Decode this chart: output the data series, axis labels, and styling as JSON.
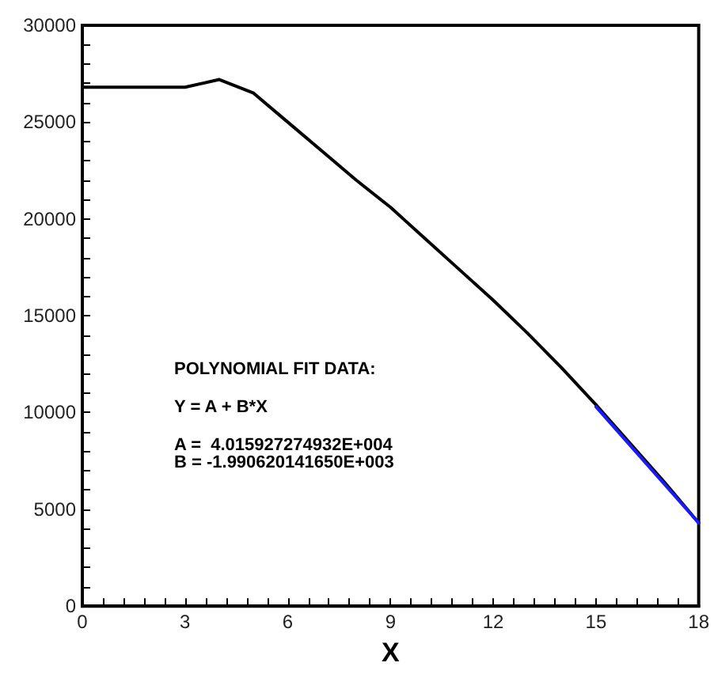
{
  "chart_data": {
    "type": "line",
    "xlabel": "X",
    "x": [
      0,
      1,
      2,
      3,
      4,
      5,
      6,
      7,
      8,
      9,
      10,
      11,
      12,
      13,
      14,
      15,
      16,
      17,
      18
    ],
    "series": [
      {
        "color": "#000000",
        "values": [
          26800,
          26800,
          26800,
          26800,
          27200,
          26500,
          25000,
          23500,
          22000,
          20600,
          19000,
          17400,
          15800,
          14100,
          12300,
          10400,
          8400,
          6400,
          4300
        ]
      },
      {
        "color": "#1a1aff",
        "x": [
          15,
          18
        ],
        "values": [
          10300,
          4300
        ]
      }
    ],
    "xlim": [
      0,
      18
    ],
    "ylim": [
      0,
      30000
    ],
    "xticks": [
      0,
      {
        "value": 0.6,
        "label": null
      },
      {
        "value": 1.2,
        "label": null
      },
      {
        "value": 1.8,
        "label": null
      },
      {
        "value": 2.4,
        "label": null
      },
      3,
      {
        "value": 3.6,
        "label": null
      },
      {
        "value": 4.2,
        "label": null
      },
      {
        "value": 4.8,
        "label": null
      },
      {
        "value": 5.4,
        "label": null
      },
      6,
      {
        "value": 6.6,
        "label": null
      },
      {
        "value": 7.2,
        "label": null
      },
      {
        "value": 7.8,
        "label": null
      },
      {
        "value": 8.4,
        "label": null
      },
      9,
      {
        "value": 9.6,
        "label": null
      },
      {
        "value": 10.2,
        "label": null
      },
      {
        "value": 10.8,
        "label": null
      },
      {
        "value": 11.4,
        "label": null
      },
      12,
      {
        "value": 12.6,
        "label": null
      },
      {
        "value": 13.2,
        "label": null
      },
      {
        "value": 13.8,
        "label": null
      },
      {
        "value": 14.4,
        "label": null
      },
      15,
      {
        "value": 15.6,
        "label": null
      },
      {
        "value": 16.2,
        "label": null
      },
      {
        "value": 16.8,
        "label": null
      },
      {
        "value": 17.4,
        "label": null
      },
      18
    ],
    "yticks": [
      0,
      {
        "value": 1000,
        "label": null
      },
      {
        "value": 2000,
        "label": null
      },
      {
        "value": 3000,
        "label": null
      },
      {
        "value": 4000,
        "label": null
      },
      5000,
      {
        "value": 6000,
        "label": null
      },
      {
        "value": 7000,
        "label": null
      },
      {
        "value": 8000,
        "label": null
      },
      {
        "value": 9000,
        "label": null
      },
      10000,
      {
        "value": 11000,
        "label": null
      },
      {
        "value": 12000,
        "label": null
      },
      {
        "value": 13000,
        "label": null
      },
      {
        "value": 14000,
        "label": null
      },
      15000,
      {
        "value": 16000,
        "label": null
      },
      {
        "value": 17000,
        "label": null
      },
      {
        "value": 18000,
        "label": null
      },
      {
        "value": 19000,
        "label": null
      },
      20000,
      {
        "value": 21000,
        "label": null
      },
      {
        "value": 22000,
        "label": null
      },
      {
        "value": 23000,
        "label": null
      },
      {
        "value": 24000,
        "label": null
      },
      25000,
      {
        "value": 26000,
        "label": null
      },
      {
        "value": 27000,
        "label": null
      },
      {
        "value": 28000,
        "label": null
      },
      {
        "value": 29000,
        "label": null
      },
      30000
    ],
    "annotations": [
      "POLYNOMIAL FIT DATA:",
      "Y = A + B*X",
      "A =  4.015927274932E+004\nB = -1.990620141650E+003"
    ],
    "grid": false,
    "marker": "none",
    "line_style": "solid"
  }
}
